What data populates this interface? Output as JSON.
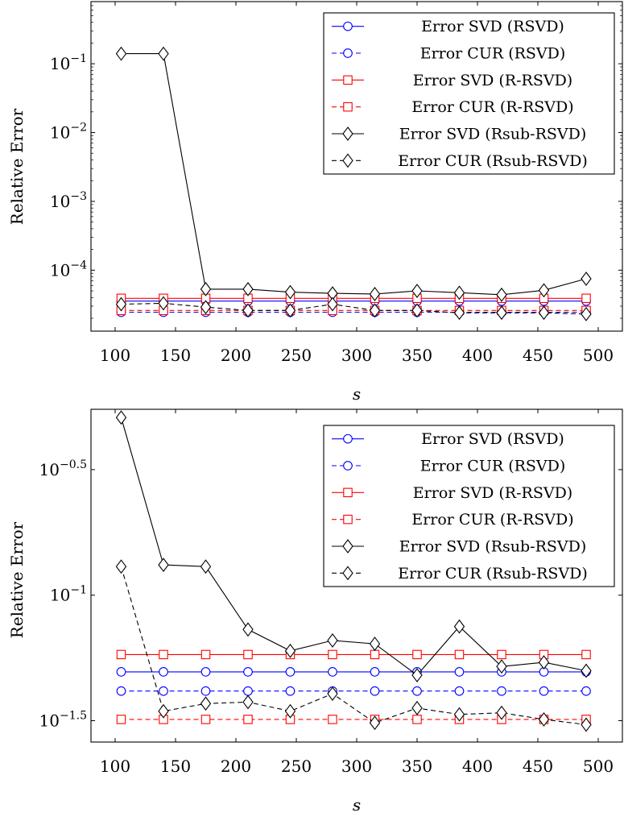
{
  "chart_data": [
    {
      "type": "line",
      "yscale": "log",
      "title": "",
      "xlabel": "s",
      "ylabel": "Relative Error",
      "xlim": [
        80,
        520
      ],
      "ylim": [
        1.3e-05,
        0.8
      ],
      "grid": false,
      "legend_position": "top-right",
      "x_ticks": [
        100,
        150,
        200,
        250,
        300,
        350,
        400,
        450,
        500
      ],
      "x_tick_labels": [
        "100",
        "150",
        "200",
        "250",
        "300",
        "350",
        "400",
        "450",
        "500"
      ],
      "y_ticks": [
        0.0001,
        0.001,
        0.01,
        0.1
      ],
      "y_tick_labels": [
        {
          "base": "10",
          "exp": "−4"
        },
        {
          "base": "10",
          "exp": "−3"
        },
        {
          "base": "10",
          "exp": "−2"
        },
        {
          "base": "10",
          "exp": "−1"
        }
      ],
      "x": [
        105,
        140,
        175,
        210,
        245,
        280,
        315,
        350,
        385,
        420,
        455,
        490
      ],
      "series": [
        {
          "name": "Error SVD (RSVD)",
          "color": "#0000ff",
          "dash": "solid",
          "marker": "circle",
          "values": [
            3.55e-05,
            3.55e-05,
            3.55e-05,
            3.55e-05,
            3.55e-05,
            3.55e-05,
            3.55e-05,
            3.55e-05,
            3.55e-05,
            3.55e-05,
            3.55e-05,
            3.55e-05
          ]
        },
        {
          "name": "Error CUR (RSVD)",
          "color": "#0000ff",
          "dash": "dashed",
          "marker": "circle",
          "values": [
            2.45e-05,
            2.45e-05,
            2.45e-05,
            2.45e-05,
            2.45e-05,
            2.45e-05,
            2.45e-05,
            2.45e-05,
            2.45e-05,
            2.45e-05,
            2.45e-05,
            2.45e-05
          ]
        },
        {
          "name": "Error SVD (R-RSVD)",
          "color": "#ff0000",
          "dash": "solid",
          "marker": "square",
          "values": [
            3.9e-05,
            3.9e-05,
            3.9e-05,
            3.9e-05,
            3.9e-05,
            3.9e-05,
            3.9e-05,
            3.9e-05,
            3.9e-05,
            3.9e-05,
            3.9e-05,
            3.9e-05
          ]
        },
        {
          "name": "Error CUR (R-RSVD)",
          "color": "#ff0000",
          "dash": "dashed",
          "marker": "square",
          "values": [
            2.6e-05,
            2.6e-05,
            2.6e-05,
            2.6e-05,
            2.6e-05,
            2.6e-05,
            2.6e-05,
            2.6e-05,
            2.6e-05,
            2.6e-05,
            2.6e-05,
            2.6e-05
          ]
        },
        {
          "name": "Error SVD (Rsub-RSVD)",
          "color": "#000000",
          "dash": "solid",
          "marker": "diamond",
          "values": [
            0.14,
            0.14,
            5.3e-05,
            5.3e-05,
            4.8e-05,
            4.6e-05,
            4.5e-05,
            5e-05,
            4.7e-05,
            4.4e-05,
            5.1e-05,
            7.5e-05
          ]
        },
        {
          "name": "Error CUR (Rsub-RSVD)",
          "color": "#000000",
          "dash": "dashed",
          "marker": "diamond",
          "values": [
            3.2e-05,
            3.3e-05,
            2.9e-05,
            2.6e-05,
            2.6e-05,
            3.2e-05,
            2.6e-05,
            2.6e-05,
            2.4e-05,
            2.4e-05,
            2.4e-05,
            2.3e-05
          ]
        }
      ]
    },
    {
      "type": "line",
      "yscale": "log",
      "title": "",
      "xlabel": "s",
      "ylabel": "Relative Error",
      "xlim": [
        80,
        520
      ],
      "ylim": [
        0.026,
        0.55
      ],
      "grid": false,
      "legend_position": "top-right",
      "x_ticks": [
        100,
        150,
        200,
        250,
        300,
        350,
        400,
        450,
        500
      ],
      "x_tick_labels": [
        "100",
        "150",
        "200",
        "250",
        "300",
        "350",
        "400",
        "450",
        "500"
      ],
      "y_ticks": [
        0.031623,
        0.1,
        0.316228
      ],
      "y_tick_labels": [
        {
          "base": "10",
          "exp": "−1.5"
        },
        {
          "base": "10",
          "exp": "−1"
        },
        {
          "base": "10",
          "exp": "−0.5"
        }
      ],
      "x": [
        105,
        140,
        175,
        210,
        245,
        280,
        315,
        350,
        385,
        420,
        455,
        490
      ],
      "series": [
        {
          "name": "Error SVD (RSVD)",
          "color": "#0000ff",
          "dash": "solid",
          "marker": "circle",
          "values": [
            0.0495,
            0.0495,
            0.0495,
            0.0495,
            0.0495,
            0.0495,
            0.0495,
            0.0495,
            0.0495,
            0.0495,
            0.0495,
            0.0495
          ]
        },
        {
          "name": "Error CUR (RSVD)",
          "color": "#0000ff",
          "dash": "dashed",
          "marker": "circle",
          "values": [
            0.0415,
            0.0415,
            0.0415,
            0.0415,
            0.0415,
            0.0415,
            0.0415,
            0.0415,
            0.0415,
            0.0415,
            0.0415,
            0.0415
          ]
        },
        {
          "name": "Error SVD (R-RSVD)",
          "color": "#ff0000",
          "dash": "solid",
          "marker": "square",
          "values": [
            0.058,
            0.058,
            0.058,
            0.058,
            0.058,
            0.058,
            0.058,
            0.058,
            0.058,
            0.058,
            0.058,
            0.058
          ]
        },
        {
          "name": "Error CUR (R-RSVD)",
          "color": "#ff0000",
          "dash": "dashed",
          "marker": "square",
          "values": [
            0.032,
            0.032,
            0.032,
            0.032,
            0.032,
            0.032,
            0.032,
            0.032,
            0.032,
            0.032,
            0.032,
            0.032
          ]
        },
        {
          "name": "Error SVD (Rsub-RSVD)",
          "color": "#000000",
          "dash": "solid",
          "marker": "diamond",
          "values": [
            0.51,
            0.132,
            0.13,
            0.073,
            0.06,
            0.066,
            0.064,
            0.048,
            0.075,
            0.052,
            0.054,
            0.05
          ]
        },
        {
          "name": "Error CUR (Rsub-RSVD)",
          "color": "#000000",
          "dash": "dashed",
          "marker": "diamond",
          "values": [
            0.13,
            0.0345,
            0.037,
            0.0375,
            0.0345,
            0.0405,
            0.031,
            0.0355,
            0.0335,
            0.034,
            0.032,
            0.0305
          ]
        }
      ]
    }
  ]
}
